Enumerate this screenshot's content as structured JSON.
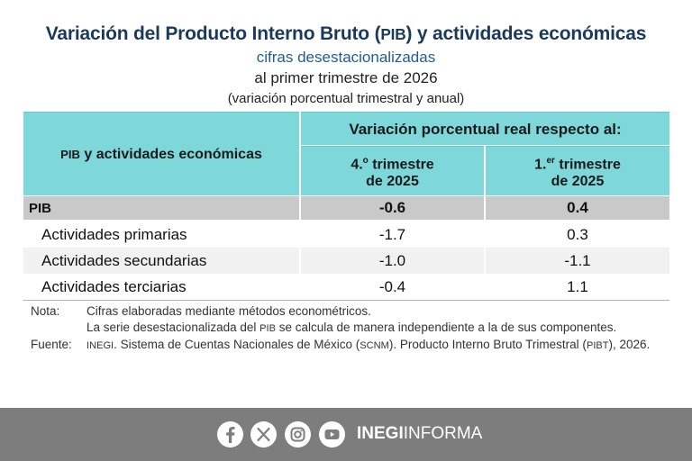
{
  "header": {
    "title_pre": "Variación del Producto Interno Bruto (",
    "title_abbr": "PIB",
    "title_post": ") y actividades económicas",
    "subtitle": "cifras desestacionalizadas",
    "period": "al primer trimestre de 2026",
    "unit": "(variación porcentual trimestral y anual)"
  },
  "table": {
    "row_header_abbr": "PIB",
    "row_header_rest": " y actividades económicas",
    "group_header": "Variación porcentual real respecto al:",
    "col1_num": "4.",
    "col1_sup": "o",
    "col1_rest": " trimestre",
    "col1_year": "de 2025",
    "col2_num": "1.",
    "col2_sup": "er",
    "col2_rest": " trimestre",
    "col2_year": "de 2025",
    "rows": [
      {
        "label": "PIB",
        "v1": "-0.6",
        "v2": "0.4"
      },
      {
        "label": "Actividades primarias",
        "v1": "-1.7",
        "v2": "0.3"
      },
      {
        "label": "Actividades secundarias",
        "v1": "-1.0",
        "v2": "-1.1"
      },
      {
        "label": "Actividades terciarias",
        "v1": "-0.4",
        "v2": "1.1"
      }
    ]
  },
  "notes": {
    "nota_key": "Nota:",
    "nota_line1": "Cifras elaboradas mediante métodos econométricos.",
    "nota_line2_pre": "La serie desestacionalizada del ",
    "nota_line2_abbr": "PIB",
    "nota_line2_post": " se calcula de manera independiente a la de sus componentes.",
    "fuente_key": "Fuente:",
    "fuente_abbr1": "INEGI",
    "fuente_mid": ". Sistema de Cuentas Nacionales de México (",
    "fuente_abbr2": "SCNM",
    "fuente_mid2": "). Producto Interno Bruto Trimestral (",
    "fuente_abbr3": "PIBT",
    "fuente_end": "), 2026."
  },
  "footer": {
    "brand_bold": "INEGI",
    "brand_rest": "INFORMA",
    "icons": [
      "facebook-icon",
      "x-icon",
      "instagram-icon",
      "youtube-icon"
    ],
    "bg_color": "#7d7d7d"
  }
}
